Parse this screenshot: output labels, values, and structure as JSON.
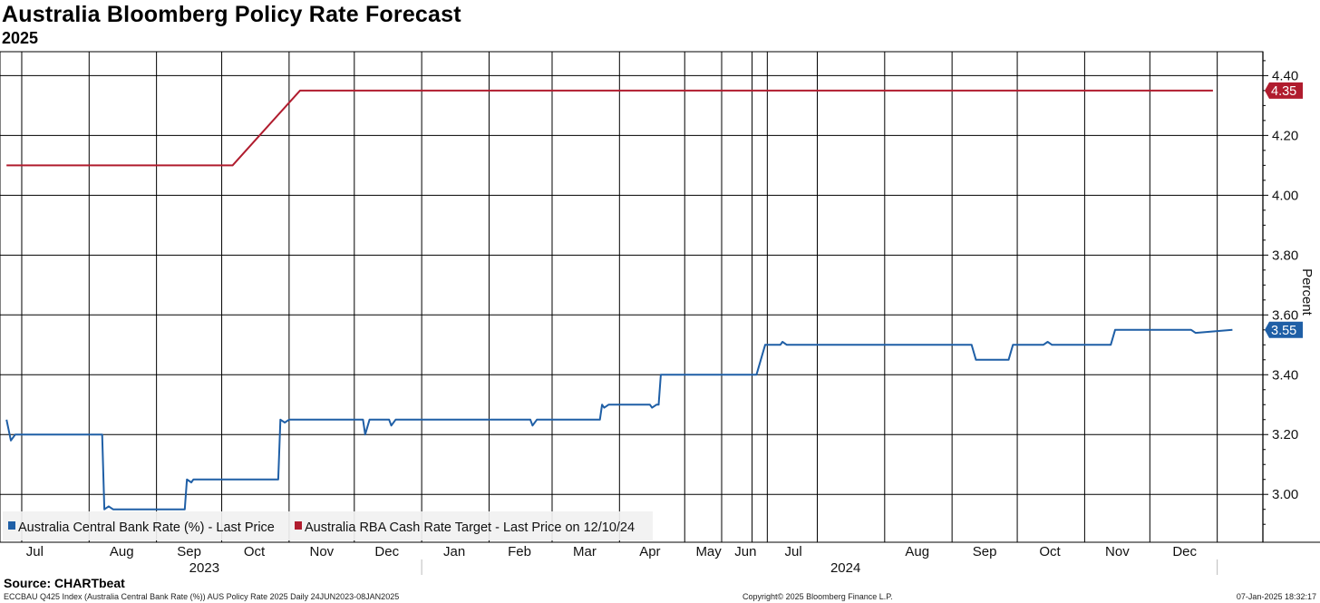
{
  "header": {
    "title": "Australia Bloomberg Policy Rate Forecast",
    "subtitle": "2025"
  },
  "footer": {
    "source": "Source: CHARTbeat",
    "left_note": "ECCBAU Q425 Index (Australia Central Bank Rate (%)) AUS Policy Rate 2025  Daily 24JUN2023-08JAN2025",
    "copyright": "Copyright© 2025 Bloomberg Finance L.P.",
    "timestamp": "07-Jan-2025 18:32:17"
  },
  "chart_data": {
    "type": "line",
    "title": "Australia Bloomberg Policy Rate Forecast",
    "subtitle": "2025",
    "ylabel": "Percent",
    "ylim": [
      2.84,
      4.48
    ],
    "yticks": [
      "3.00",
      "3.20",
      "3.40",
      "3.60",
      "3.80",
      "4.00",
      "4.20",
      "4.40"
    ],
    "grid": true,
    "legend_position": "bottom-left",
    "x_month_labels": [
      "Jul",
      "Aug",
      "Sep",
      "Oct",
      "Nov",
      "Dec",
      "Jan",
      "Feb",
      "Mar",
      "Apr",
      "May",
      "Jun",
      "Jul",
      "Aug",
      "Sep",
      "Oct",
      "Nov",
      "Dec"
    ],
    "x_year_labels": [
      "2023",
      "2024"
    ],
    "series": [
      {
        "name": "Australia Central Bank Rate (%) - Last Price",
        "color": "#1f5fa6",
        "last_value_label": "3.55",
        "x": [
          "2023-06-24",
          "2023-06-26",
          "2023-06-28",
          "2023-07-01",
          "2023-08-07",
          "2023-08-08",
          "2023-08-10",
          "2023-08-12",
          "2023-09-14",
          "2023-09-15",
          "2023-09-17",
          "2023-09-18",
          "2023-10-27",
          "2023-10-28",
          "2023-10-30",
          "2023-11-01",
          "2023-12-05",
          "2023-12-06",
          "2023-12-08",
          "2023-12-10",
          "2023-12-17",
          "2023-12-18",
          "2023-12-20",
          "2024-02-20",
          "2024-02-21",
          "2024-02-23",
          "2024-03-23",
          "2024-03-24",
          "2024-03-25",
          "2024-03-27",
          "2024-04-15",
          "2024-04-16",
          "2024-04-18",
          "2024-04-19",
          "2024-04-20",
          "2024-06-03",
          "2024-06-05",
          "2024-06-07",
          "2024-06-14",
          "2024-06-15",
          "2024-06-17",
          "2024-09-10",
          "2024-09-12",
          "2024-09-27",
          "2024-09-29",
          "2024-10-13",
          "2024-10-15",
          "2024-10-17",
          "2024-11-13",
          "2024-11-15",
          "2024-11-17",
          "2024-12-20",
          "2024-12-22",
          "2025-01-08"
        ],
        "values": [
          3.25,
          3.18,
          3.2,
          3.2,
          3.2,
          2.95,
          2.96,
          2.95,
          2.95,
          3.05,
          3.04,
          3.05,
          3.05,
          3.25,
          3.24,
          3.25,
          3.25,
          3.2,
          3.25,
          3.25,
          3.25,
          3.23,
          3.25,
          3.25,
          3.23,
          3.25,
          3.25,
          3.3,
          3.29,
          3.3,
          3.3,
          3.29,
          3.3,
          3.3,
          3.4,
          3.4,
          3.45,
          3.5,
          3.5,
          3.51,
          3.5,
          3.5,
          3.45,
          3.45,
          3.5,
          3.5,
          3.51,
          3.5,
          3.5,
          3.55,
          3.55,
          3.55,
          3.54,
          3.55
        ]
      },
      {
        "name": "Australia RBA Cash Rate Target - Last Price on 12/10/24",
        "color": "#b01c2e",
        "last_value_label": "4.35",
        "x": [
          "2023-06-24",
          "2023-10-06",
          "2023-11-06",
          "2024-12-30"
        ],
        "values": [
          4.1,
          4.1,
          4.35,
          4.35
        ]
      }
    ]
  }
}
